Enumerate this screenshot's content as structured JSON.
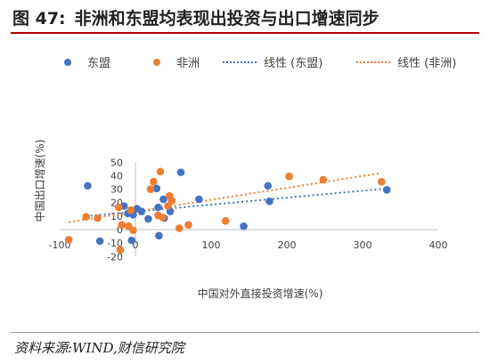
{
  "figure": {
    "number": "图 47:",
    "title": "非洲和东盟均表现出投资与出口增速同步",
    "source": "资料来源:WIND,财信研究院"
  },
  "colors": {
    "asean": "#4472C4",
    "africa": "#ED7D31",
    "rule": "#b30000"
  },
  "chart_data": {
    "type": "scatter",
    "title": "",
    "xlabel": "中国对外直接投资增速(%)",
    "ylabel": "中国出口增速(%)",
    "xlim": [
      -100,
      400
    ],
    "ylim": [
      -20,
      50
    ],
    "xticks": [
      -100,
      0,
      100,
      200,
      300,
      400
    ],
    "yticks": [
      -20,
      -10,
      0,
      10,
      20,
      30,
      40,
      50
    ],
    "grid": false,
    "legend_position": "top",
    "series": [
      {
        "name": "东盟",
        "color": "#4472C4",
        "marker": "circle",
        "points": [
          [
            -63,
            32.5
          ],
          [
            -47,
            -8.5
          ],
          [
            -15,
            17.5
          ],
          [
            -10,
            12
          ],
          [
            -5,
            -8
          ],
          [
            -3,
            11
          ],
          [
            2,
            15.5
          ],
          [
            8,
            13.5
          ],
          [
            17,
            8
          ],
          [
            28,
            30.5
          ],
          [
            30,
            16.5
          ],
          [
            31,
            -4.5
          ],
          [
            37,
            22.5
          ],
          [
            38,
            8.5
          ],
          [
            46,
            13.5
          ],
          [
            60,
            42.5
          ],
          [
            84,
            22.5
          ],
          [
            143,
            2.5
          ],
          [
            175,
            32.5
          ],
          [
            177,
            21
          ],
          [
            332,
            29.5
          ]
        ]
      },
      {
        "name": "非洲",
        "color": "#ED7D31",
        "marker": "circle",
        "points": [
          [
            -88,
            -7.5
          ],
          [
            -65,
            9.5
          ],
          [
            -50,
            8.5
          ],
          [
            -22,
            16.5
          ],
          [
            -18,
            3.5
          ],
          [
            -9,
            2.5
          ],
          [
            -6,
            14.5
          ],
          [
            -3,
            -0.5
          ],
          [
            -20,
            -15
          ],
          [
            20,
            30
          ],
          [
            24,
            35.5
          ],
          [
            30,
            10.5
          ],
          [
            33,
            43
          ],
          [
            36,
            9
          ],
          [
            43,
            17.5
          ],
          [
            45,
            25
          ],
          [
            48,
            21.5
          ],
          [
            58,
            1
          ],
          [
            70,
            3.5
          ],
          [
            119,
            6.5
          ],
          [
            203,
            39.5
          ],
          [
            248,
            37
          ],
          [
            325,
            35.5
          ]
        ]
      }
    ],
    "trendlines": [
      {
        "name": "线性 (东盟)",
        "color": "#4472C4",
        "x": [
          -65,
          332
        ],
        "y": [
          10.0,
          30.5
        ]
      },
      {
        "name": "线性 (非洲)",
        "color": "#ED7D31",
        "x": [
          -88,
          325
        ],
        "y": [
          5.5,
          42.0
        ]
      }
    ]
  },
  "legend": {
    "asean_label": "东盟",
    "africa_label": "非洲",
    "asean_trend_label": "线性 (东盟)",
    "africa_trend_label": "线性 (非洲)"
  }
}
